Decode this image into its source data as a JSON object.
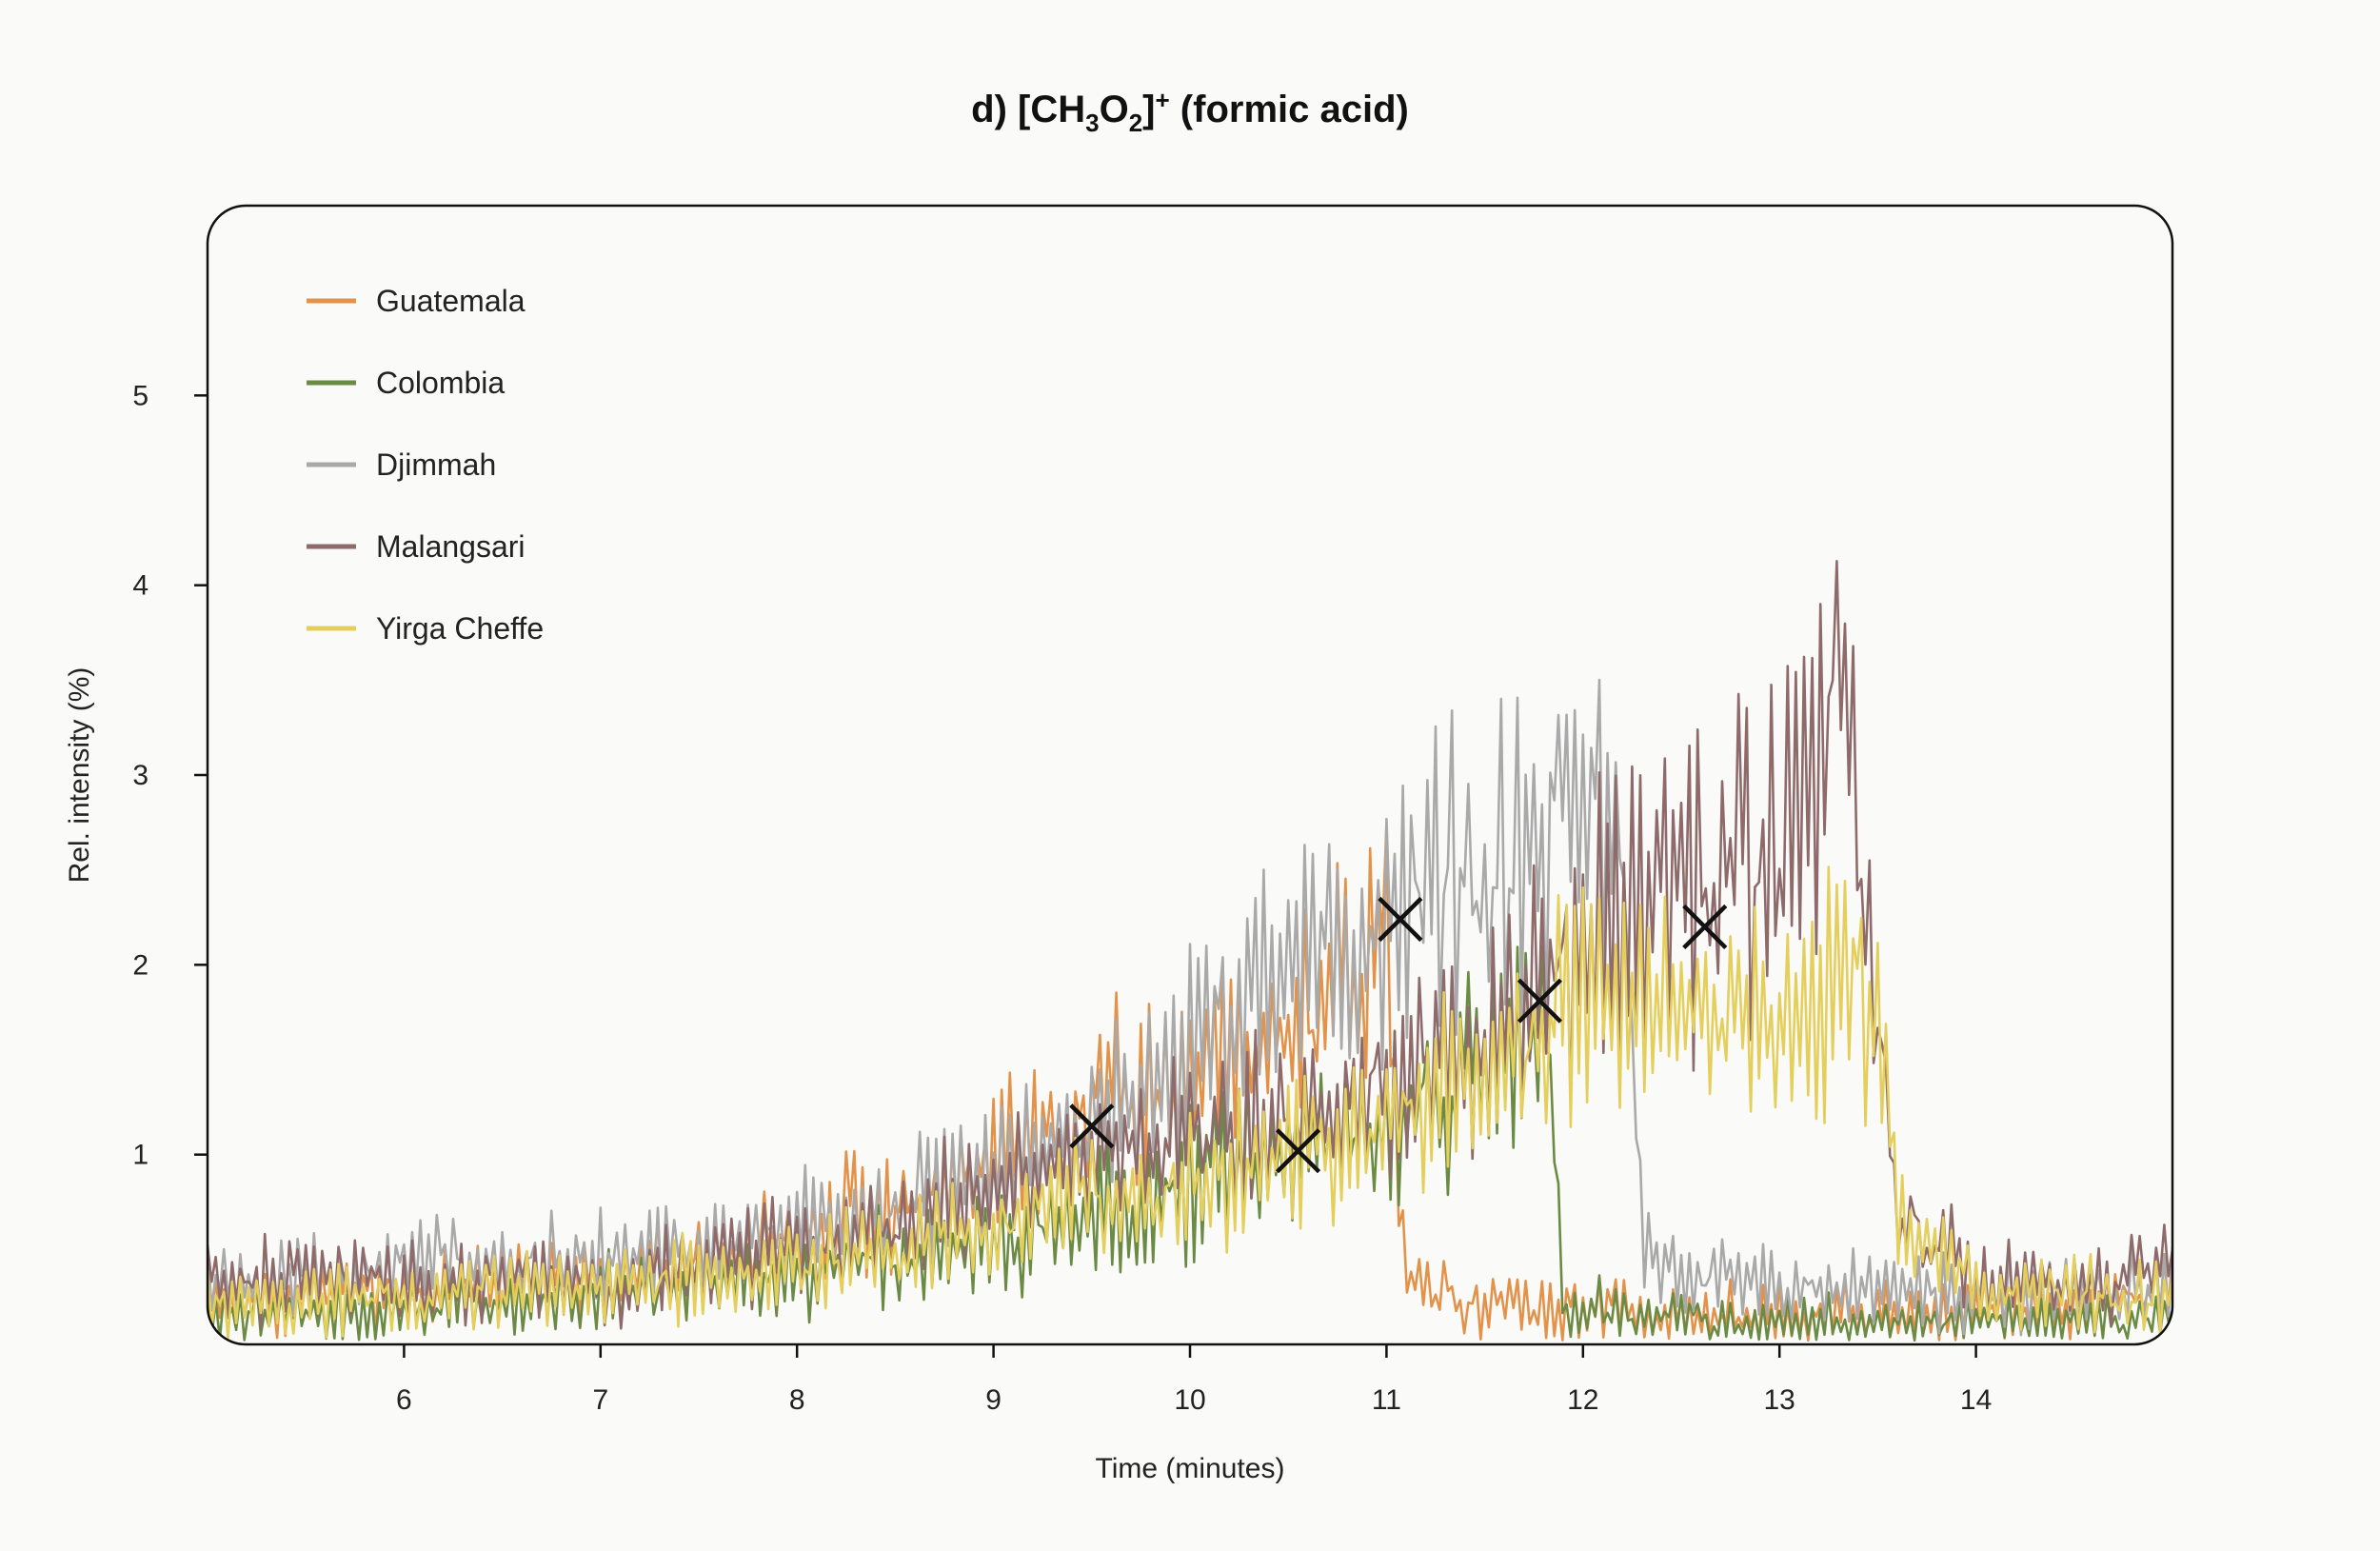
{
  "chart_data": {
    "type": "line",
    "title": {
      "prefix": "d) [CH",
      "sub1": "3",
      "mid": "O",
      "sub2": "2",
      "close": "]",
      "sup": "+",
      "suffix": " (formic acid)"
    },
    "xlabel": "Time (minutes)",
    "ylabel": "Rel. intensity (%)",
    "xlim": [
      5.0,
      15.0
    ],
    "ylim": [
      0.0,
      6.0
    ],
    "xticks": [
      6,
      7,
      8,
      9,
      10,
      11,
      12,
      13,
      14
    ],
    "yticks": [
      1,
      2,
      3,
      4,
      5
    ],
    "grid": false,
    "legend_position": "top-left",
    "series": [
      {
        "name": "Guatemala",
        "color": "#e3924a",
        "x": [
          5.0,
          5.5,
          6.0,
          6.5,
          7.0,
          7.5,
          8.0,
          8.5,
          9.0,
          9.5,
          10.0,
          10.5,
          10.8,
          11.0,
          11.05,
          11.1,
          11.5,
          12.0,
          12.5,
          13.0,
          13.5,
          14.0,
          14.5,
          15.0
        ],
        "values": [
          0.2,
          0.25,
          0.28,
          0.32,
          0.35,
          0.45,
          0.6,
          0.75,
          0.95,
          1.2,
          1.45,
          1.7,
          1.95,
          2.1,
          1.2,
          0.35,
          0.2,
          0.18,
          0.15,
          0.15,
          0.15,
          0.18,
          0.2,
          0.3
        ]
      },
      {
        "name": "Colombia",
        "color": "#6b8a44",
        "x": [
          5.0,
          5.5,
          6.0,
          6.5,
          7.0,
          7.5,
          8.0,
          8.5,
          9.0,
          9.5,
          10.0,
          10.5,
          11.0,
          11.5,
          11.8,
          11.85,
          11.9,
          12.5,
          13.0,
          13.5,
          14.0,
          14.5,
          15.0
        ],
        "values": [
          0.15,
          0.15,
          0.18,
          0.22,
          0.28,
          0.32,
          0.38,
          0.45,
          0.55,
          0.7,
          0.85,
          1.0,
          1.2,
          1.45,
          1.7,
          1.0,
          0.2,
          0.12,
          0.1,
          0.1,
          0.12,
          0.12,
          0.12
        ]
      },
      {
        "name": "Djimmah",
        "color": "#a9a9a9",
        "x": [
          5.0,
          5.5,
          6.0,
          6.5,
          7.0,
          7.5,
          8.0,
          8.5,
          9.0,
          9.5,
          10.0,
          10.5,
          11.0,
          11.5,
          12.0,
          12.2,
          12.25,
          12.3,
          12.6,
          13.0,
          13.5,
          14.0,
          14.5,
          15.0
        ],
        "values": [
          0.3,
          0.35,
          0.4,
          0.45,
          0.45,
          0.5,
          0.6,
          0.7,
          0.9,
          1.15,
          1.55,
          1.9,
          2.2,
          2.5,
          2.75,
          2.8,
          1.5,
          0.5,
          0.35,
          0.3,
          0.3,
          0.28,
          0.28,
          0.28
        ]
      },
      {
        "name": "Malangsari",
        "color": "#8e6a6a",
        "x": [
          5.0,
          5.5,
          6.0,
          6.5,
          7.0,
          7.5,
          8.0,
          8.5,
          9.0,
          9.5,
          10.0,
          10.5,
          11.0,
          11.5,
          12.0,
          12.5,
          13.0,
          13.2,
          13.3,
          13.45,
          13.6,
          14.0,
          14.5,
          15.0
        ],
        "values": [
          0.35,
          0.35,
          0.35,
          0.35,
          0.35,
          0.4,
          0.5,
          0.6,
          0.8,
          1.0,
          1.1,
          1.2,
          1.35,
          1.6,
          2.1,
          2.4,
          2.6,
          3.0,
          3.5,
          2.2,
          0.7,
          0.35,
          0.3,
          0.4
        ]
      },
      {
        "name": "Yirga Cheffe",
        "color": "#e5cf5c",
        "x": [
          5.0,
          5.5,
          6.0,
          6.5,
          7.0,
          7.5,
          8.0,
          8.5,
          9.0,
          9.5,
          10.0,
          10.5,
          11.0,
          11.5,
          12.0,
          12.5,
          13.0,
          13.3,
          13.5,
          13.6,
          14.0,
          14.5,
          15.0
        ],
        "values": [
          0.2,
          0.22,
          0.25,
          0.28,
          0.3,
          0.35,
          0.4,
          0.5,
          0.6,
          0.75,
          0.85,
          1.0,
          1.15,
          1.4,
          1.8,
          1.75,
          1.7,
          1.9,
          1.8,
          0.6,
          0.3,
          0.25,
          0.25
        ]
      }
    ],
    "markers": [
      {
        "symbol": "x",
        "x": 9.5,
        "y": 1.15
      },
      {
        "symbol": "x",
        "x": 10.55,
        "y": 1.02
      },
      {
        "symbol": "x",
        "x": 11.07,
        "y": 2.24
      },
      {
        "symbol": "x",
        "x": 11.78,
        "y": 1.81
      },
      {
        "symbol": "x",
        "x": 12.62,
        "y": 2.2
      }
    ]
  }
}
